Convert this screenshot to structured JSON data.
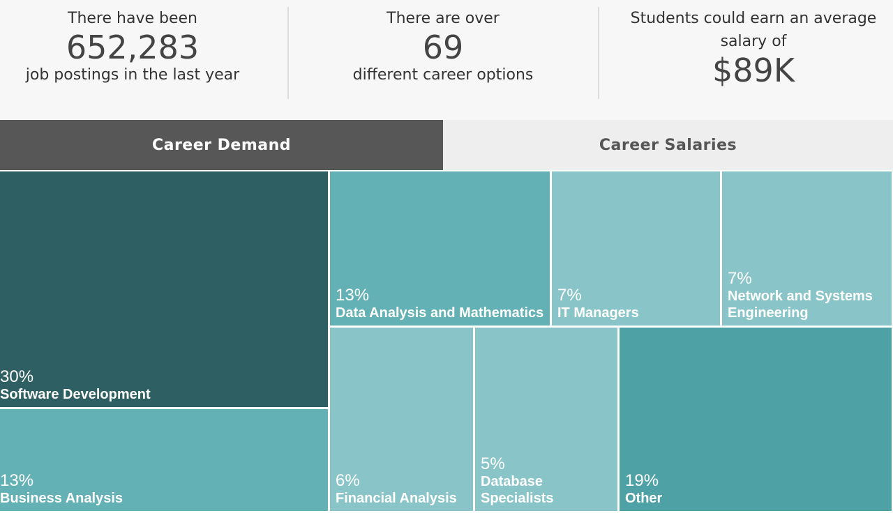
{
  "stats": [
    {
      "pre": "There have been",
      "value": "652,283",
      "post": "job postings in the last year"
    },
    {
      "pre": "There are over",
      "value": "69",
      "post": "different career options"
    },
    {
      "pre": "Students could earn an average salary of",
      "value": "$89K",
      "post": ""
    }
  ],
  "tabs": [
    {
      "label": "Career Demand",
      "active": true
    },
    {
      "label": "Career Salaries",
      "active": false
    }
  ],
  "colors": {
    "dark": "#2e5f62",
    "mid": "#63b1b5",
    "light": "#89c5c8",
    "other": "#4ea1a5"
  },
  "chart_data": {
    "type": "treemap",
    "title": "Career Demand",
    "unit": "%",
    "items": [
      {
        "name": "Software Development",
        "value": 30,
        "label": "30%",
        "color": "#2e5f62"
      },
      {
        "name": "Business Analysis",
        "value": 13,
        "label": "13%",
        "color": "#63b1b5"
      },
      {
        "name": "Data Analysis and Mathematics",
        "value": 13,
        "label": "13%",
        "color": "#63b1b5"
      },
      {
        "name": "IT Managers",
        "value": 7,
        "label": "7%",
        "color": "#89c5c8"
      },
      {
        "name": "Network and Systems Engineering",
        "value": 7,
        "label": "7%",
        "color": "#89c5c8"
      },
      {
        "name": "Financial Analysis",
        "value": 6,
        "label": "6%",
        "color": "#89c5c8"
      },
      {
        "name": "Database Specialists",
        "value": 5,
        "label": "5%",
        "color": "#89c5c8"
      },
      {
        "name": "Other",
        "value": 19,
        "label": "19%",
        "color": "#4ea1a5"
      }
    ]
  }
}
